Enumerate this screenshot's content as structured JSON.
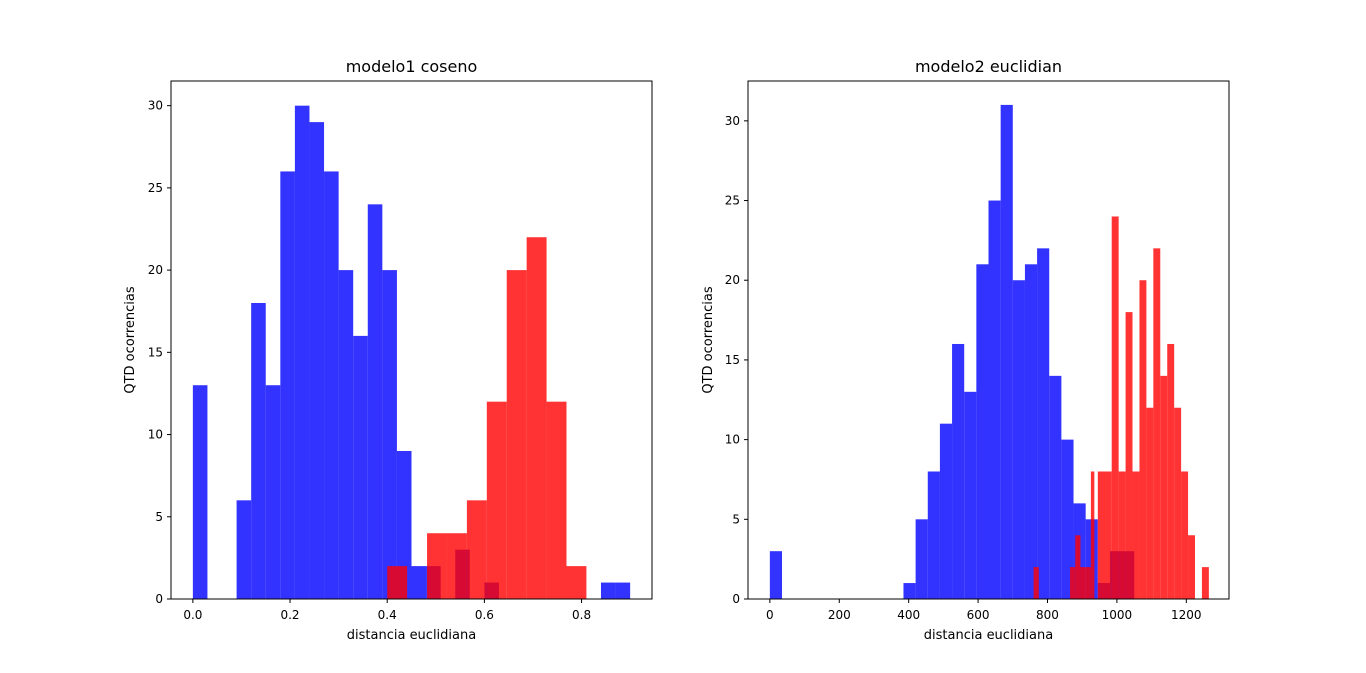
{
  "chart_data": [
    {
      "type": "histogram",
      "title": "modelo1 coseno",
      "xlabel": "distancia euclidiana",
      "ylabel": "QTD ocorrencias",
      "xlim": [
        -0.045,
        0.945
      ],
      "ylim": [
        0,
        31.5
      ],
      "xticks": [
        0.0,
        0.2,
        0.4,
        0.6,
        0.8
      ],
      "xtick_labels": [
        "0.0",
        "0.2",
        "0.4",
        "0.6",
        "0.8"
      ],
      "yticks": [
        0,
        5,
        10,
        15,
        20,
        25,
        30
      ],
      "ytick_labels": [
        "0",
        "5",
        "10",
        "15",
        "20",
        "25",
        "30"
      ],
      "grid": false,
      "legend": "none",
      "series": [
        {
          "color": "#0000ff",
          "alpha": 0.8,
          "bins": [
            {
              "x0": 0.0,
              "x1": 0.03,
              "count": 13
            },
            {
              "x0": 0.09,
              "x1": 0.12,
              "count": 6
            },
            {
              "x0": 0.12,
              "x1": 0.15,
              "count": 18
            },
            {
              "x0": 0.15,
              "x1": 0.18,
              "count": 13
            },
            {
              "x0": 0.18,
              "x1": 0.21,
              "count": 26
            },
            {
              "x0": 0.21,
              "x1": 0.24,
              "count": 30
            },
            {
              "x0": 0.24,
              "x1": 0.27,
              "count": 29
            },
            {
              "x0": 0.27,
              "x1": 0.3,
              "count": 26
            },
            {
              "x0": 0.3,
              "x1": 0.33,
              "count": 20
            },
            {
              "x0": 0.33,
              "x1": 0.36,
              "count": 16
            },
            {
              "x0": 0.36,
              "x1": 0.39,
              "count": 24
            },
            {
              "x0": 0.39,
              "x1": 0.42,
              "count": 20
            },
            {
              "x0": 0.42,
              "x1": 0.45,
              "count": 9
            },
            {
              "x0": 0.45,
              "x1": 0.48,
              "count": 2
            },
            {
              "x0": 0.48,
              "x1": 0.51,
              "count": 2
            },
            {
              "x0": 0.54,
              "x1": 0.57,
              "count": 3
            },
            {
              "x0": 0.6,
              "x1": 0.63,
              "count": 1
            },
            {
              "x0": 0.84,
              "x1": 0.87,
              "count": 1
            },
            {
              "x0": 0.87,
              "x1": 0.9,
              "count": 1
            }
          ]
        },
        {
          "color": "#ff0000",
          "alpha": 0.8,
          "bins": [
            {
              "x0": 0.4,
              "x1": 0.441,
              "count": 2
            },
            {
              "x0": 0.441,
              "x1": 0.482,
              "count": 0
            },
            {
              "x0": 0.482,
              "x1": 0.523,
              "count": 4
            },
            {
              "x0": 0.523,
              "x1": 0.564,
              "count": 4
            },
            {
              "x0": 0.564,
              "x1": 0.605,
              "count": 6
            },
            {
              "x0": 0.605,
              "x1": 0.646,
              "count": 12
            },
            {
              "x0": 0.646,
              "x1": 0.687,
              "count": 20
            },
            {
              "x0": 0.687,
              "x1": 0.728,
              "count": 22
            },
            {
              "x0": 0.728,
              "x1": 0.769,
              "count": 12
            },
            {
              "x0": 0.769,
              "x1": 0.81,
              "count": 2
            }
          ]
        }
      ]
    },
    {
      "type": "histogram",
      "title": "modelo2 euclidian",
      "xlabel": "distancia euclidiana",
      "ylabel": "QTD ocorrencias",
      "xlim": [
        -63,
        1323
      ],
      "ylim": [
        0,
        32.5
      ],
      "xticks": [
        0,
        200,
        400,
        600,
        800,
        1000,
        1200
      ],
      "xtick_labels": [
        "0",
        "200",
        "400",
        "600",
        "800",
        "1000",
        "1200"
      ],
      "yticks": [
        0,
        5,
        10,
        15,
        20,
        25,
        30
      ],
      "ytick_labels": [
        "0",
        "5",
        "10",
        "15",
        "20",
        "25",
        "30"
      ],
      "grid": false,
      "legend": "none",
      "series": [
        {
          "color": "#0000ff",
          "alpha": 0.8,
          "bins": [
            {
              "x0": 0,
              "x1": 35,
              "count": 3
            },
            {
              "x0": 385,
              "x1": 420,
              "count": 1
            },
            {
              "x0": 420,
              "x1": 455,
              "count": 5
            },
            {
              "x0": 455,
              "x1": 490,
              "count": 8
            },
            {
              "x0": 490,
              "x1": 525,
              "count": 11
            },
            {
              "x0": 525,
              "x1": 560,
              "count": 16
            },
            {
              "x0": 560,
              "x1": 595,
              "count": 13
            },
            {
              "x0": 595,
              "x1": 630,
              "count": 21
            },
            {
              "x0": 630,
              "x1": 665,
              "count": 25
            },
            {
              "x0": 665,
              "x1": 700,
              "count": 31
            },
            {
              "x0": 700,
              "x1": 735,
              "count": 20
            },
            {
              "x0": 735,
              "x1": 770,
              "count": 21
            },
            {
              "x0": 770,
              "x1": 805,
              "count": 22
            },
            {
              "x0": 805,
              "x1": 840,
              "count": 14
            },
            {
              "x0": 840,
              "x1": 875,
              "count": 10
            },
            {
              "x0": 875,
              "x1": 910,
              "count": 6
            },
            {
              "x0": 910,
              "x1": 945,
              "count": 5
            },
            {
              "x0": 945,
              "x1": 980,
              "count": 1
            },
            {
              "x0": 980,
              "x1": 1015,
              "count": 3
            },
            {
              "x0": 1015,
              "x1": 1050,
              "count": 3
            }
          ]
        },
        {
          "color": "#ff0000",
          "alpha": 0.8,
          "bins": [
            {
              "x0": 760,
              "x1": 775,
              "count": 2
            },
            {
              "x0": 865,
              "x1": 880,
              "count": 2
            },
            {
              "x0": 880,
              "x1": 895,
              "count": 4
            },
            {
              "x0": 895,
              "x1": 910,
              "count": 2
            },
            {
              "x0": 910,
              "x1": 925,
              "count": 2
            },
            {
              "x0": 925,
              "x1": 935,
              "count": 8
            },
            {
              "x0": 945,
              "x1": 985,
              "count": 8
            },
            {
              "x0": 985,
              "x1": 1005,
              "count": 24
            },
            {
              "x0": 1005,
              "x1": 1025,
              "count": 8
            },
            {
              "x0": 1025,
              "x1": 1045,
              "count": 18
            },
            {
              "x0": 1045,
              "x1": 1065,
              "count": 8
            },
            {
              "x0": 1065,
              "x1": 1085,
              "count": 20
            },
            {
              "x0": 1085,
              "x1": 1105,
              "count": 12
            },
            {
              "x0": 1105,
              "x1": 1125,
              "count": 22
            },
            {
              "x0": 1125,
              "x1": 1145,
              "count": 14
            },
            {
              "x0": 1145,
              "x1": 1165,
              "count": 16
            },
            {
              "x0": 1165,
              "x1": 1185,
              "count": 12
            },
            {
              "x0": 1185,
              "x1": 1205,
              "count": 8
            },
            {
              "x0": 1205,
              "x1": 1225,
              "count": 4
            },
            {
              "x0": 1245,
              "x1": 1265,
              "count": 2
            }
          ]
        }
      ]
    }
  ]
}
